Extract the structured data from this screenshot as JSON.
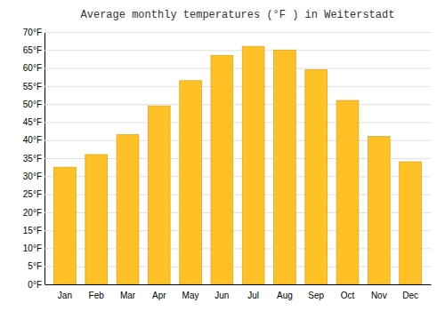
{
  "chart_data": {
    "type": "bar",
    "title": "Average monthly temperatures (°F ) in Weiterstadt",
    "categories": [
      "Jan",
      "Feb",
      "Mar",
      "Apr",
      "May",
      "Jun",
      "Jul",
      "Aug",
      "Sep",
      "Oct",
      "Nov",
      "Dec"
    ],
    "values": [
      32.5,
      36.0,
      41.5,
      49.5,
      56.5,
      63.5,
      66.0,
      65.0,
      59.5,
      51.0,
      41.0,
      34.0
    ],
    "color": "#FFC125",
    "ylim": [
      0,
      70
    ],
    "yticks": [
      {
        "value": 0,
        "label": "0°F"
      },
      {
        "value": 5,
        "label": "5°F"
      },
      {
        "value": 10,
        "label": "10°F"
      },
      {
        "value": 15,
        "label": "15°F"
      },
      {
        "value": 20,
        "label": "20°F"
      },
      {
        "value": 25,
        "label": "25°F"
      },
      {
        "value": 30,
        "label": "30°F"
      },
      {
        "value": 35,
        "label": "35°F"
      },
      {
        "value": 40,
        "label": "40°F"
      },
      {
        "value": 45,
        "label": "45°F"
      },
      {
        "value": 50,
        "label": "50°F"
      },
      {
        "value": 55,
        "label": "55°F"
      },
      {
        "value": 60,
        "label": "60°F"
      },
      {
        "value": 65,
        "label": "65°F"
      },
      {
        "value": 70,
        "label": "70°F"
      }
    ],
    "grid": true
  }
}
